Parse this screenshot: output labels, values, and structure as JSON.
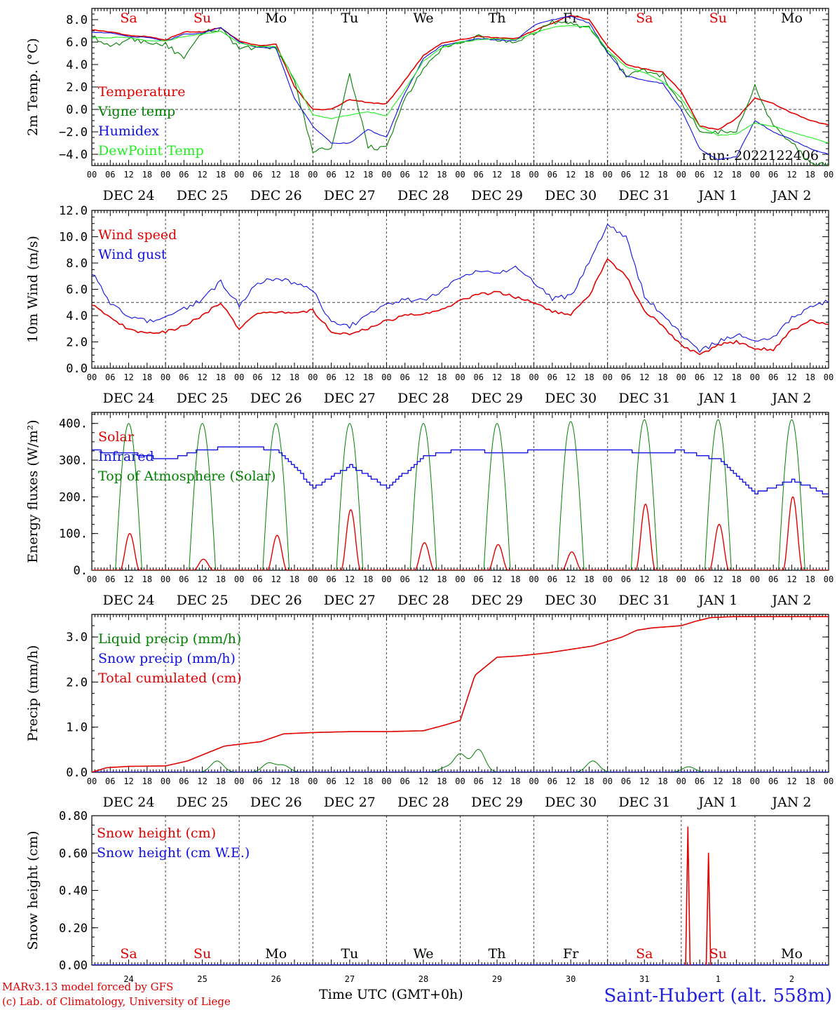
{
  "footer": {
    "model": "MARv3.13 model forced by GFS",
    "credit": "(c) Lab. of Climatology, University of Liege",
    "time_axis": "Time UTC (GMT+0h)",
    "station": "Saint-Hubert (alt. 558m)"
  },
  "colors": {
    "red": "#e00000",
    "green": "#008000",
    "blue": "#1010e0",
    "lightgreen": "#22ee22",
    "grey": "#555555"
  },
  "days": {
    "weekday": [
      "Sa",
      "Su",
      "Mo",
      "Tu",
      "We",
      "Th",
      "Fr",
      "Sa",
      "Su",
      "Mo"
    ],
    "weekend_flags": [
      true,
      true,
      false,
      false,
      false,
      false,
      false,
      true,
      true,
      false
    ],
    "dates": [
      "DEC 24",
      "DEC 25",
      "DEC 26",
      "DEC 27",
      "DEC 28",
      "DEC 29",
      "DEC 30",
      "DEC 31",
      "JAN  1",
      "JAN  2"
    ],
    "day_numbers": [
      "24",
      "25",
      "26",
      "27",
      "28",
      "29",
      "30",
      "31",
      "1",
      "2"
    ],
    "hours": [
      "00",
      "06",
      "12",
      "18"
    ],
    "end_hour": "00"
  },
  "chart_data": [
    {
      "type": "line",
      "ylabel": "2m Temp. (°C)",
      "ylim": [
        -5,
        9
      ],
      "yticks": [
        "8.0",
        "6.0",
        "4.0",
        "2.0",
        "0.0",
        "−2.0",
        "−4.0"
      ],
      "ytick_values": [
        8,
        6,
        4,
        2,
        0,
        -2,
        -4
      ],
      "reference_line": 0,
      "annotation": "run: 2022122406",
      "x_days": [
        0,
        0.25,
        0.5,
        0.75,
        1,
        1.25,
        1.5,
        1.75,
        2,
        2.25,
        2.5,
        2.75,
        3,
        3.25,
        3.5,
        3.75,
        4,
        4.25,
        4.5,
        4.75,
        5,
        5.25,
        5.5,
        5.75,
        6,
        6.25,
        6.5,
        6.75,
        7,
        7.25,
        7.5,
        7.75,
        8,
        8.25,
        8.5,
        8.75,
        9,
        9.25,
        9.5,
        9.75,
        10
      ],
      "series": [
        {
          "name": "Temperature",
          "color": "#e00000",
          "values": [
            7.1,
            6.9,
            6.6,
            6.5,
            6.2,
            6.9,
            6.9,
            7.3,
            6.1,
            5.7,
            5.8,
            2.0,
            0.0,
            0.0,
            0.9,
            0.6,
            0.5,
            2.6,
            4.8,
            5.9,
            6.2,
            6.5,
            6.4,
            6.3,
            7.0,
            7.7,
            8.4,
            8.0,
            5.6,
            4.0,
            3.6,
            3.3,
            1.6,
            -1.5,
            -1.8,
            -0.8,
            1.0,
            0.5,
            -0.3,
            -1.0,
            -1.4
          ]
        },
        {
          "name": "Vigne temp",
          "color": "#008000",
          "values": [
            6.5,
            5.5,
            6.3,
            6.0,
            5.8,
            4.5,
            6.8,
            7.2,
            5.5,
            5.4,
            5.5,
            2.5,
            -3.7,
            -3.5,
            3.0,
            -3.3,
            -3.5,
            1.0,
            3.5,
            5.5,
            5.8,
            6.5,
            6.2,
            5.8,
            6.8,
            7.8,
            7.6,
            7.3,
            5.2,
            3.0,
            3.5,
            3.0,
            0.5,
            -1.8,
            -2.0,
            -2.0,
            2.2,
            -1.5,
            -3.0,
            -4.8,
            -5.0
          ]
        },
        {
          "name": "Humidex",
          "color": "#1010e0",
          "values": [
            6.9,
            6.8,
            6.5,
            6.4,
            6.1,
            6.7,
            6.8,
            7.3,
            6.0,
            5.5,
            5.5,
            1.0,
            -1.5,
            -3.0,
            -3.0,
            -1.8,
            -2.5,
            1.5,
            4.5,
            5.7,
            6.0,
            6.3,
            6.2,
            6.1,
            7.5,
            8.0,
            8.3,
            7.7,
            5.1,
            3.0,
            2.6,
            2.3,
            0.0,
            -3.5,
            -4.5,
            -4.2,
            -1.0,
            -2.0,
            -2.7,
            -3.5,
            -4.0
          ]
        },
        {
          "name": "DewPoint Temp",
          "color": "#22ee22",
          "values": [
            6.4,
            6.4,
            6.4,
            6.1,
            6.1,
            6.5,
            6.7,
            7.0,
            5.9,
            5.6,
            5.6,
            2.7,
            -0.5,
            -0.8,
            -0.5,
            -0.2,
            -0.6,
            1.8,
            4.3,
            5.5,
            6.0,
            6.2,
            6.3,
            6.2,
            6.8,
            7.3,
            7.5,
            7.3,
            5.3,
            3.8,
            3.3,
            2.5,
            1.0,
            -1.5,
            -2.3,
            -2.2,
            -1.2,
            -1.5,
            -2.0,
            -2.5,
            -3.0
          ]
        }
      ]
    },
    {
      "type": "line",
      "ylabel": "10m Wind (m/s)",
      "ylim": [
        0,
        12
      ],
      "yticks": [
        "12.0",
        "10.0",
        "8.0",
        "6.0",
        "4.0",
        "2.0",
        "0.0"
      ],
      "ytick_values": [
        12,
        10,
        8,
        6,
        4,
        2,
        0
      ],
      "reference_line": 5,
      "x_days": [
        0,
        0.25,
        0.5,
        0.75,
        1,
        1.25,
        1.5,
        1.75,
        2,
        2.25,
        2.5,
        2.75,
        3,
        3.25,
        3.5,
        3.75,
        4,
        4.25,
        4.5,
        4.75,
        5,
        5.25,
        5.5,
        5.75,
        6,
        6.25,
        6.5,
        6.75,
        7,
        7.25,
        7.5,
        7.75,
        8,
        8.25,
        8.5,
        8.75,
        9,
        9.25,
        9.5,
        9.75,
        10
      ],
      "series": [
        {
          "name": "Wind speed",
          "color": "#e00000",
          "values": [
            4.9,
            3.8,
            3.0,
            2.6,
            2.8,
            3.2,
            4.0,
            5.0,
            3.0,
            4.2,
            4.3,
            4.2,
            4.4,
            2.8,
            2.6,
            3.0,
            3.6,
            4.0,
            4.1,
            4.4,
            5.2,
            5.6,
            5.8,
            5.4,
            5.0,
            4.3,
            4.1,
            5.5,
            8.3,
            7.0,
            4.4,
            3.2,
            1.8,
            1.0,
            1.8,
            2.0,
            1.5,
            1.4,
            2.9,
            3.6,
            3.3
          ]
        },
        {
          "name": "Wind gust",
          "color": "#1010e0",
          "values": [
            7.3,
            5.0,
            4.0,
            3.6,
            3.8,
            4.5,
            5.2,
            6.6,
            4.8,
            6.5,
            6.8,
            6.5,
            6.0,
            3.4,
            3.2,
            4.0,
            4.8,
            5.2,
            5.2,
            5.8,
            6.9,
            7.4,
            7.3,
            7.6,
            6.6,
            5.3,
            5.5,
            8.0,
            10.9,
            10.0,
            5.5,
            4.0,
            2.6,
            1.3,
            2.0,
            2.5,
            2.2,
            2.3,
            3.8,
            4.6,
            5.1
          ]
        }
      ]
    },
    {
      "type": "line",
      "ylabel": "Energy fluxes (W/m²)",
      "ylim": [
        0,
        430
      ],
      "yticks": [
        "400.",
        "300.",
        "200.",
        "100.",
        "0."
      ],
      "ytick_values": [
        400,
        300,
        200,
        100,
        0
      ],
      "solar_peak": [
        100,
        30,
        95,
        165,
        75,
        70,
        50,
        180,
        125,
        200
      ],
      "toa_peak": [
        400,
        400,
        400,
        400,
        400,
        400,
        405,
        410,
        410,
        410
      ],
      "infrared_x_days": [
        0,
        0.5,
        1,
        1.5,
        2,
        2.5,
        3,
        3.5,
        4,
        4.5,
        5,
        5.5,
        6,
        6.5,
        7,
        7.5,
        8,
        8.5,
        9,
        9.5,
        10
      ],
      "series": [
        {
          "name": "Solar",
          "color": "#e00000"
        },
        {
          "name": "Infrared",
          "color": "#1010e0",
          "values": [
            325,
            320,
            300,
            330,
            335,
            330,
            225,
            285,
            225,
            310,
            330,
            320,
            325,
            330,
            330,
            320,
            325,
            300,
            210,
            245,
            205
          ]
        },
        {
          "name": "Top of Atmosphere (Solar)",
          "color": "#008000"
        }
      ]
    },
    {
      "type": "line",
      "ylabel": "Precip (mm/h)",
      "ylim": [
        0,
        3.5
      ],
      "yticks": [
        "3.0",
        "2.0",
        "1.0",
        "0.0"
      ],
      "ytick_values": [
        3,
        2,
        1,
        0
      ],
      "liquid_peaks_days": [
        1.7,
        2.4,
        2.6,
        4.8,
        5.0,
        5.25,
        6.8,
        8.1
      ],
      "liquid_peaks_vals": [
        0.25,
        0.2,
        0.15,
        0.1,
        0.4,
        0.5,
        0.25,
        0.12
      ],
      "x_days": [
        0,
        0.2,
        0.5,
        1.0,
        1.3,
        1.6,
        1.8,
        2.0,
        2.3,
        2.6,
        3.0,
        3.5,
        4.0,
        4.5,
        4.8,
        5.0,
        5.2,
        5.5,
        5.8,
        6.2,
        6.8,
        7.0,
        7.2,
        7.4,
        7.6,
        8.0,
        8.2,
        8.4,
        8.7,
        9.0,
        10.0
      ],
      "series": [
        {
          "name": "Liquid precip (mm/h)",
          "color": "#008000"
        },
        {
          "name": "Snow precip (mm/h)",
          "color": "#1010e0"
        },
        {
          "name": "Total cumulated (cm)",
          "color": "#e00000",
          "values": [
            0.0,
            0.1,
            0.13,
            0.14,
            0.25,
            0.45,
            0.58,
            0.62,
            0.68,
            0.85,
            0.88,
            0.9,
            0.9,
            0.92,
            1.05,
            1.15,
            2.15,
            2.55,
            2.58,
            2.65,
            2.8,
            2.9,
            3.0,
            3.15,
            3.2,
            3.25,
            3.35,
            3.43,
            3.45,
            3.45,
            3.45
          ]
        }
      ]
    },
    {
      "type": "line",
      "ylabel": "Snow height (cm)",
      "ylim": [
        0,
        0.8
      ],
      "yticks": [
        "0.80",
        "0.60",
        "0.40",
        "0.20",
        "0.00"
      ],
      "ytick_values": [
        0.8,
        0.6,
        0.4,
        0.2,
        0
      ],
      "spikes_days": [
        8.09,
        8.37
      ],
      "spikes_vals": [
        0.74,
        0.6
      ],
      "series": [
        {
          "name": "Snow height (cm)",
          "color": "#e00000"
        },
        {
          "name": "Snow height (cm W.E.)",
          "color": "#1010e0"
        }
      ]
    }
  ]
}
